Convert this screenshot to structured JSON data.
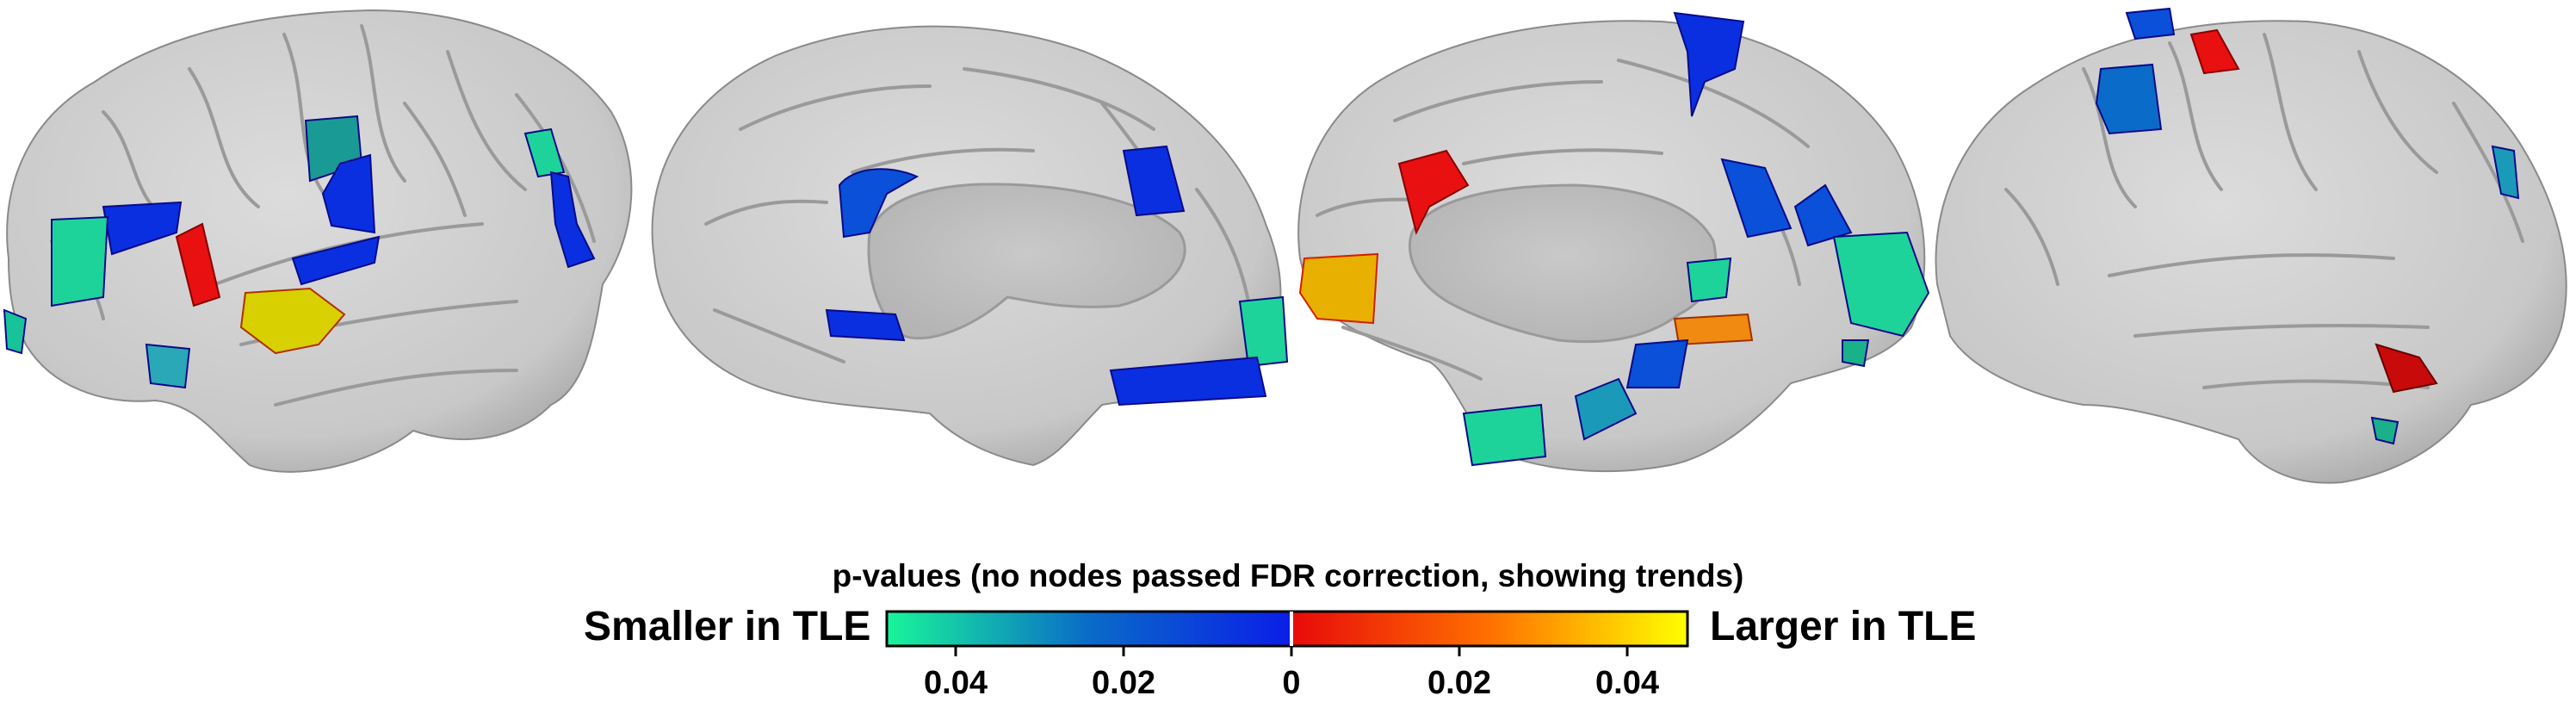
{
  "figure": {
    "views": [
      {
        "name": "left-lateral"
      },
      {
        "name": "left-medial"
      },
      {
        "name": "right-medial"
      },
      {
        "name": "right-lateral"
      }
    ]
  },
  "colorbar": {
    "title": "p-values (no nodes passed FDR correction, showing trends)",
    "left_label": "Smaller in TLE",
    "right_label": "Larger in TLE",
    "ticks": [
      "0.04",
      "0.02",
      "0",
      "0.02",
      "0.04"
    ],
    "colors": {
      "negative_end": "#19f59a",
      "negative_mid": "#0a6bc8",
      "zero_negative": "#0a1ee8",
      "zero_positive": "#e80a0a",
      "positive_mid": "#ff6a00",
      "positive_end": "#ffff00"
    }
  }
}
